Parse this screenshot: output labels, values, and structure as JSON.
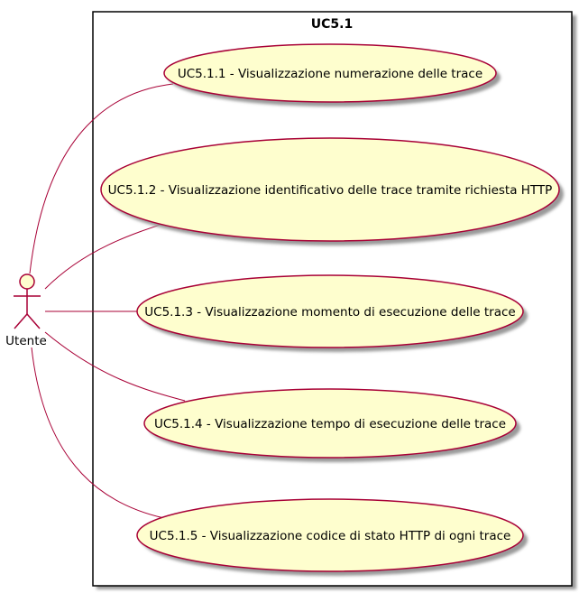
{
  "system": {
    "title": "UC5.1"
  },
  "actor": {
    "name": "Utente",
    "icon": "stick-figure-actor-icon"
  },
  "use_cases": [
    {
      "label": "UC5.1.1 - Visualizzazione numerazione delle trace"
    },
    {
      "label": "UC5.1.2 - Visualizzazione identificativo delle trace tramite richiesta HTTP"
    },
    {
      "label": "UC5.1.3 - Visualizzazione momento di esecuzione delle trace"
    },
    {
      "label": "UC5.1.4 - Visualizzazione tempo di esecuzione delle trace"
    },
    {
      "label": "UC5.1.5 - Visualizzazione codice di stato HTTP di ogni trace"
    }
  ],
  "colors": {
    "ellipse_fill": "#FEFECE",
    "stroke": "#A80036",
    "boundary": "#000000",
    "shadow": "#C8C8C8"
  }
}
